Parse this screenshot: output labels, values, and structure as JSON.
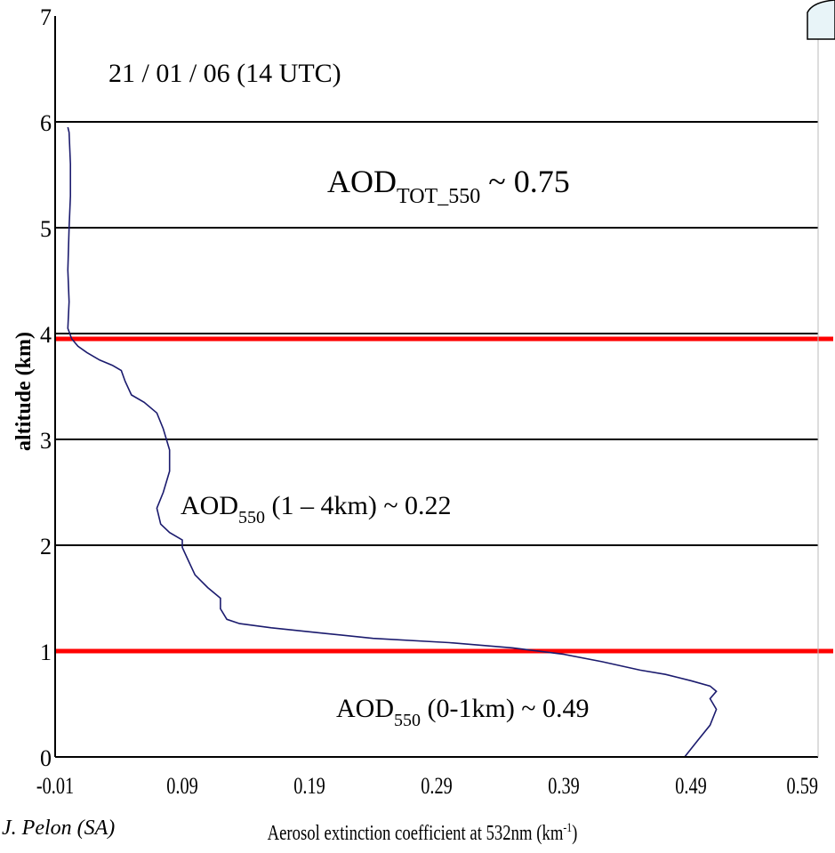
{
  "chart_data": {
    "type": "line",
    "title": "21 / 01 / 06 (14 UTC)",
    "xlabel": "Aerosol extinction coefficient at 532nm (km",
    "xlabel_sup": "-1",
    "xlabel_suffix": ")",
    "ylabel": "altitude (km)",
    "xlim": [
      -0.01,
      0.59
    ],
    "ylim": [
      0,
      7
    ],
    "x_ticks": [
      "-0.01",
      "0.09",
      "0.19",
      "0.29",
      "0.39",
      "0.49",
      "0.59"
    ],
    "y_ticks": [
      "0",
      "1",
      "2",
      "3",
      "4",
      "5",
      "6",
      "7"
    ],
    "grid": {
      "horizontal": [
        1,
        2,
        3,
        4,
        5,
        6
      ],
      "color": "#000000"
    },
    "reference_lines": [
      {
        "y": 1.0,
        "color": "#ff0000"
      },
      {
        "y": 3.95,
        "color": "#ff0000"
      }
    ],
    "series": [
      {
        "color": "#1b1b6e",
        "points": [
          [
            0.485,
            0.0
          ],
          [
            0.495,
            0.15
          ],
          [
            0.505,
            0.3
          ],
          [
            0.51,
            0.45
          ],
          [
            0.505,
            0.55
          ],
          [
            0.51,
            0.62
          ],
          [
            0.505,
            0.67
          ],
          [
            0.49,
            0.72
          ],
          [
            0.47,
            0.78
          ],
          [
            0.45,
            0.82
          ],
          [
            0.42,
            0.9
          ],
          [
            0.39,
            0.97
          ],
          [
            0.35,
            1.03
          ],
          [
            0.3,
            1.08
          ],
          [
            0.24,
            1.12
          ],
          [
            0.2,
            1.17
          ],
          [
            0.16,
            1.22
          ],
          [
            0.135,
            1.26
          ],
          [
            0.125,
            1.3
          ],
          [
            0.12,
            1.4
          ],
          [
            0.12,
            1.5
          ],
          [
            0.11,
            1.6
          ],
          [
            0.1,
            1.72
          ],
          [
            0.095,
            1.85
          ],
          [
            0.09,
            1.98
          ],
          [
            0.09,
            2.05
          ],
          [
            0.08,
            2.12
          ],
          [
            0.073,
            2.2
          ],
          [
            0.07,
            2.35
          ],
          [
            0.075,
            2.5
          ],
          [
            0.08,
            2.7
          ],
          [
            0.08,
            2.9
          ],
          [
            0.075,
            3.1
          ],
          [
            0.07,
            3.25
          ],
          [
            0.06,
            3.35
          ],
          [
            0.05,
            3.42
          ],
          [
            0.045,
            3.55
          ],
          [
            0.042,
            3.65
          ],
          [
            0.035,
            3.7
          ],
          [
            0.025,
            3.75
          ],
          [
            0.015,
            3.82
          ],
          [
            0.008,
            3.88
          ],
          [
            0.003,
            3.95
          ],
          [
            0.0,
            4.05
          ],
          [
            0.001,
            4.3
          ],
          [
            0.0,
            4.6
          ],
          [
            0.001,
            5.0
          ],
          [
            0.002,
            5.3
          ],
          [
            0.002,
            5.6
          ],
          [
            0.001,
            5.9
          ],
          [
            0.0,
            5.95
          ]
        ]
      }
    ],
    "annotations": [
      {
        "base": "AOD",
        "sub": "TOT_550",
        "rest": " ~ 0.75"
      },
      {
        "base": "AOD",
        "sub": "550",
        "rest": " (1 – 4km) ~ 0.22"
      },
      {
        "base": "AOD",
        "sub": "550",
        "rest": " (0-1km) ~ 0.49"
      }
    ]
  },
  "credit": "J. Pelon (SA)"
}
